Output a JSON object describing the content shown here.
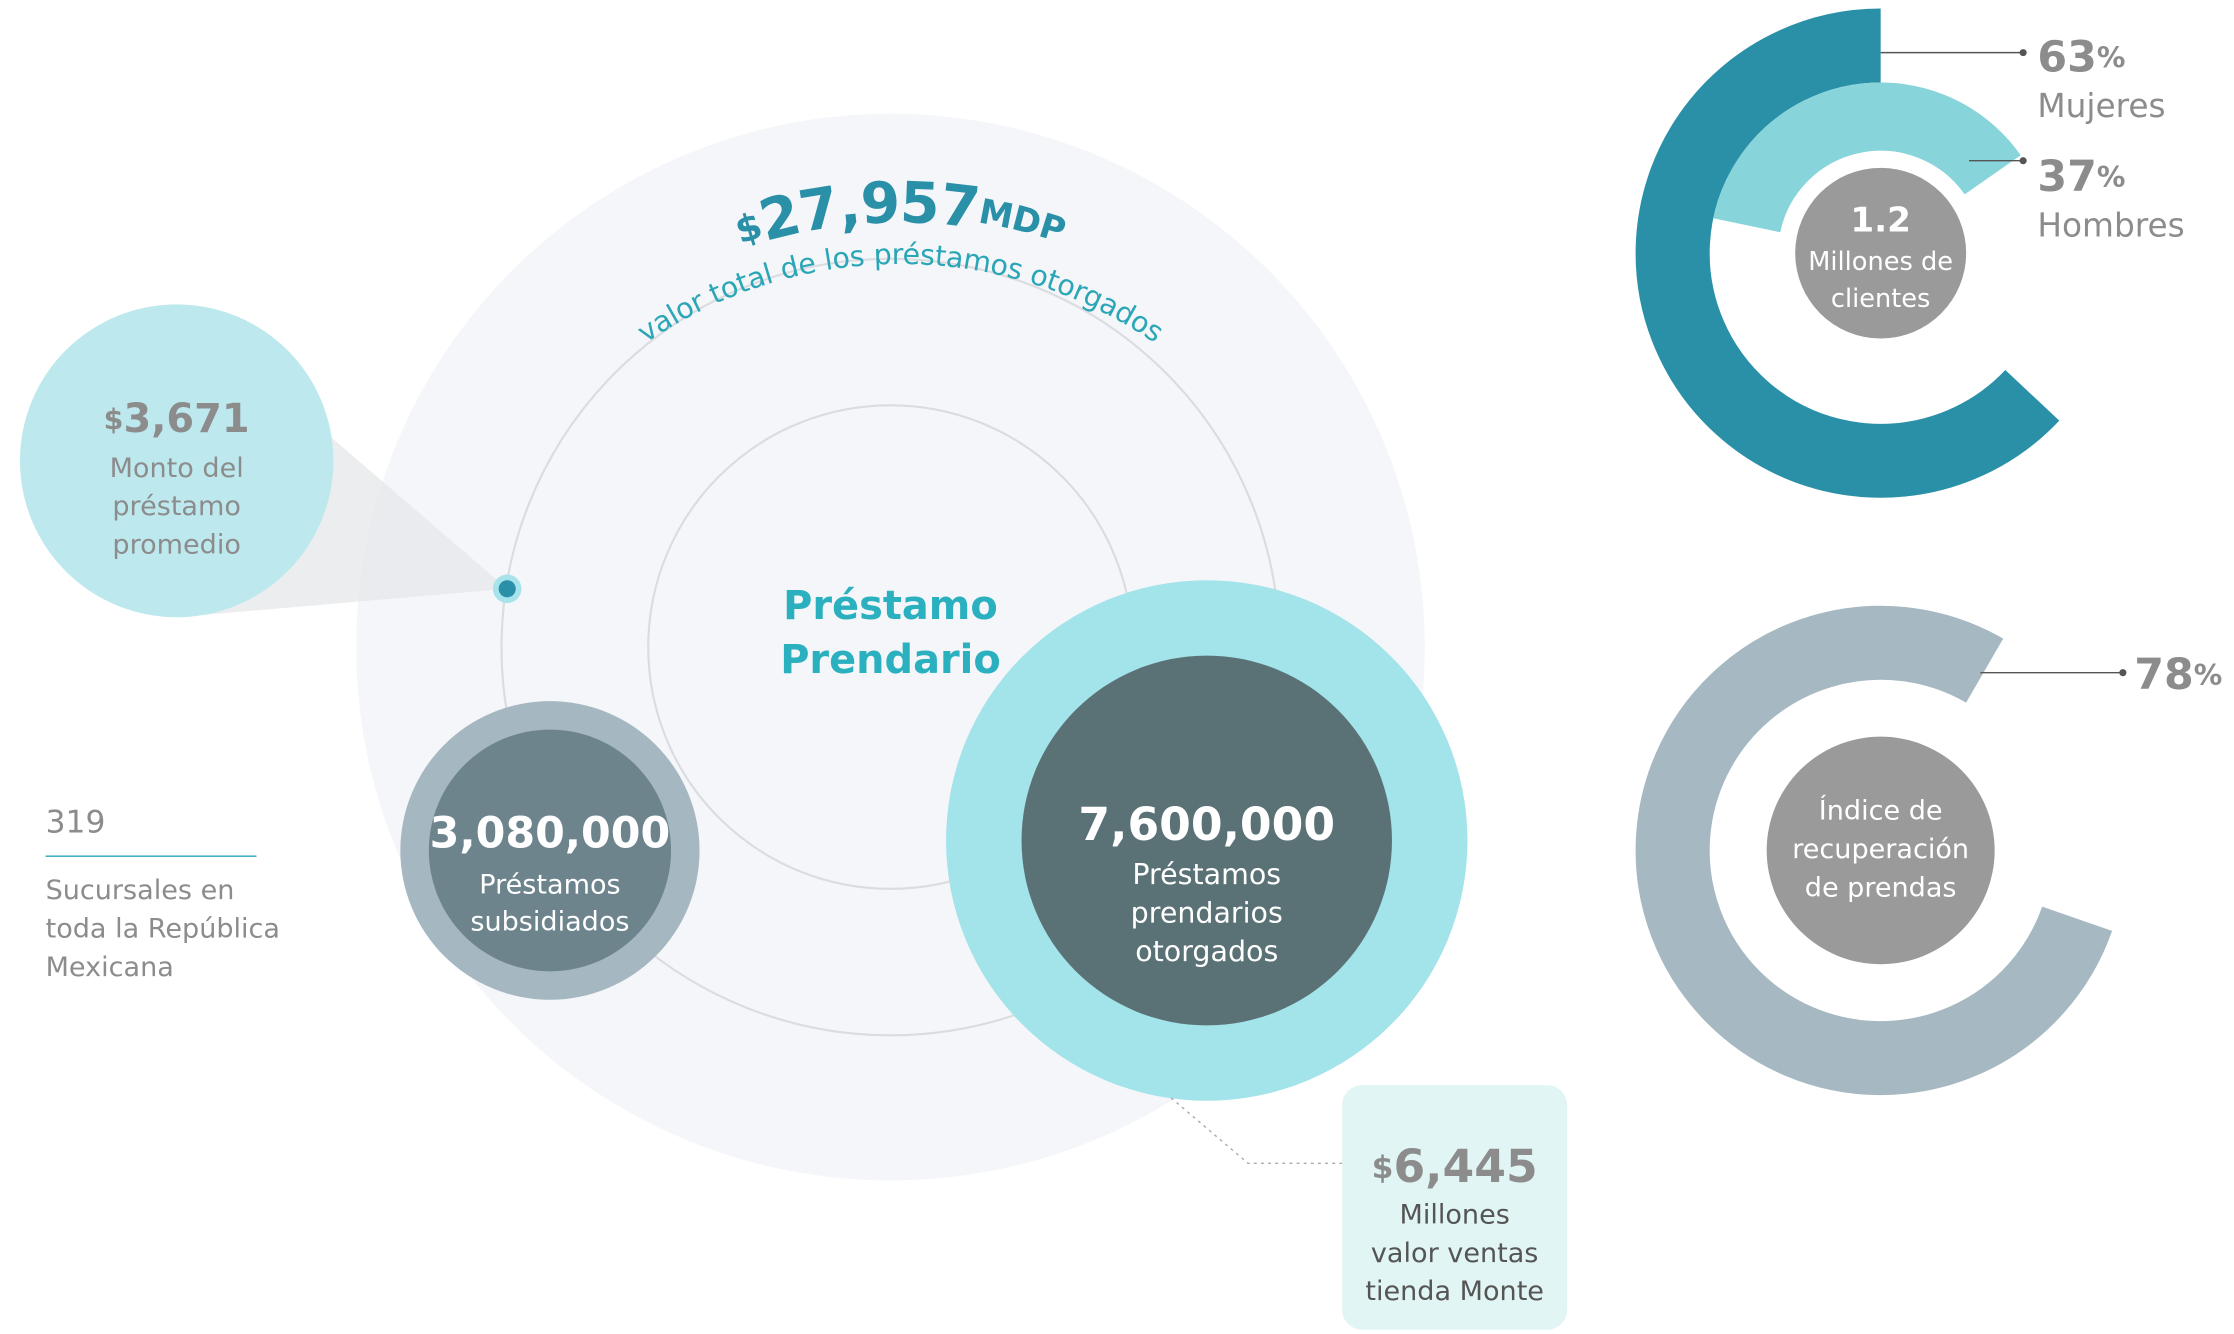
{
  "total": {
    "currency": "$",
    "amount": "27,957",
    "unit": "MDP",
    "caption": "valor total de los préstamos otorgados"
  },
  "center_label": [
    "Préstamo",
    "Prendario"
  ],
  "average_loan": {
    "currency": "$",
    "amount": "3,671",
    "lines": [
      "Monto del",
      "préstamo",
      "promedio"
    ]
  },
  "branches": {
    "value": "319",
    "lines": [
      "Sucursales en",
      "toda la República",
      "Mexicana"
    ]
  },
  "subsidized": {
    "value": "3,080,000",
    "lines": [
      "Préstamos",
      "subsidiados"
    ]
  },
  "pledge": {
    "value": "7,600,000",
    "lines": [
      "Préstamos",
      "prendarios",
      "otorgados"
    ]
  },
  "store_sales": {
    "currency": "$",
    "amount": "6,445",
    "lines": [
      "Millones",
      "valor ventas",
      "tienda Monte"
    ]
  },
  "clients": {
    "value": "1.2",
    "lines": [
      "Millones de",
      "clientes"
    ],
    "segments": [
      {
        "value": 63,
        "unit": "%",
        "label": "Mujeres",
        "color": "#2a90a8"
      },
      {
        "value": 37,
        "unit": "%",
        "label": "Hombres",
        "color": "#87d5da"
      }
    ]
  },
  "recovery": {
    "value": 78,
    "unit": "%",
    "color": "#a6b8c1",
    "lines": [
      "Índice de",
      "recuperación",
      "de prendas"
    ]
  }
}
